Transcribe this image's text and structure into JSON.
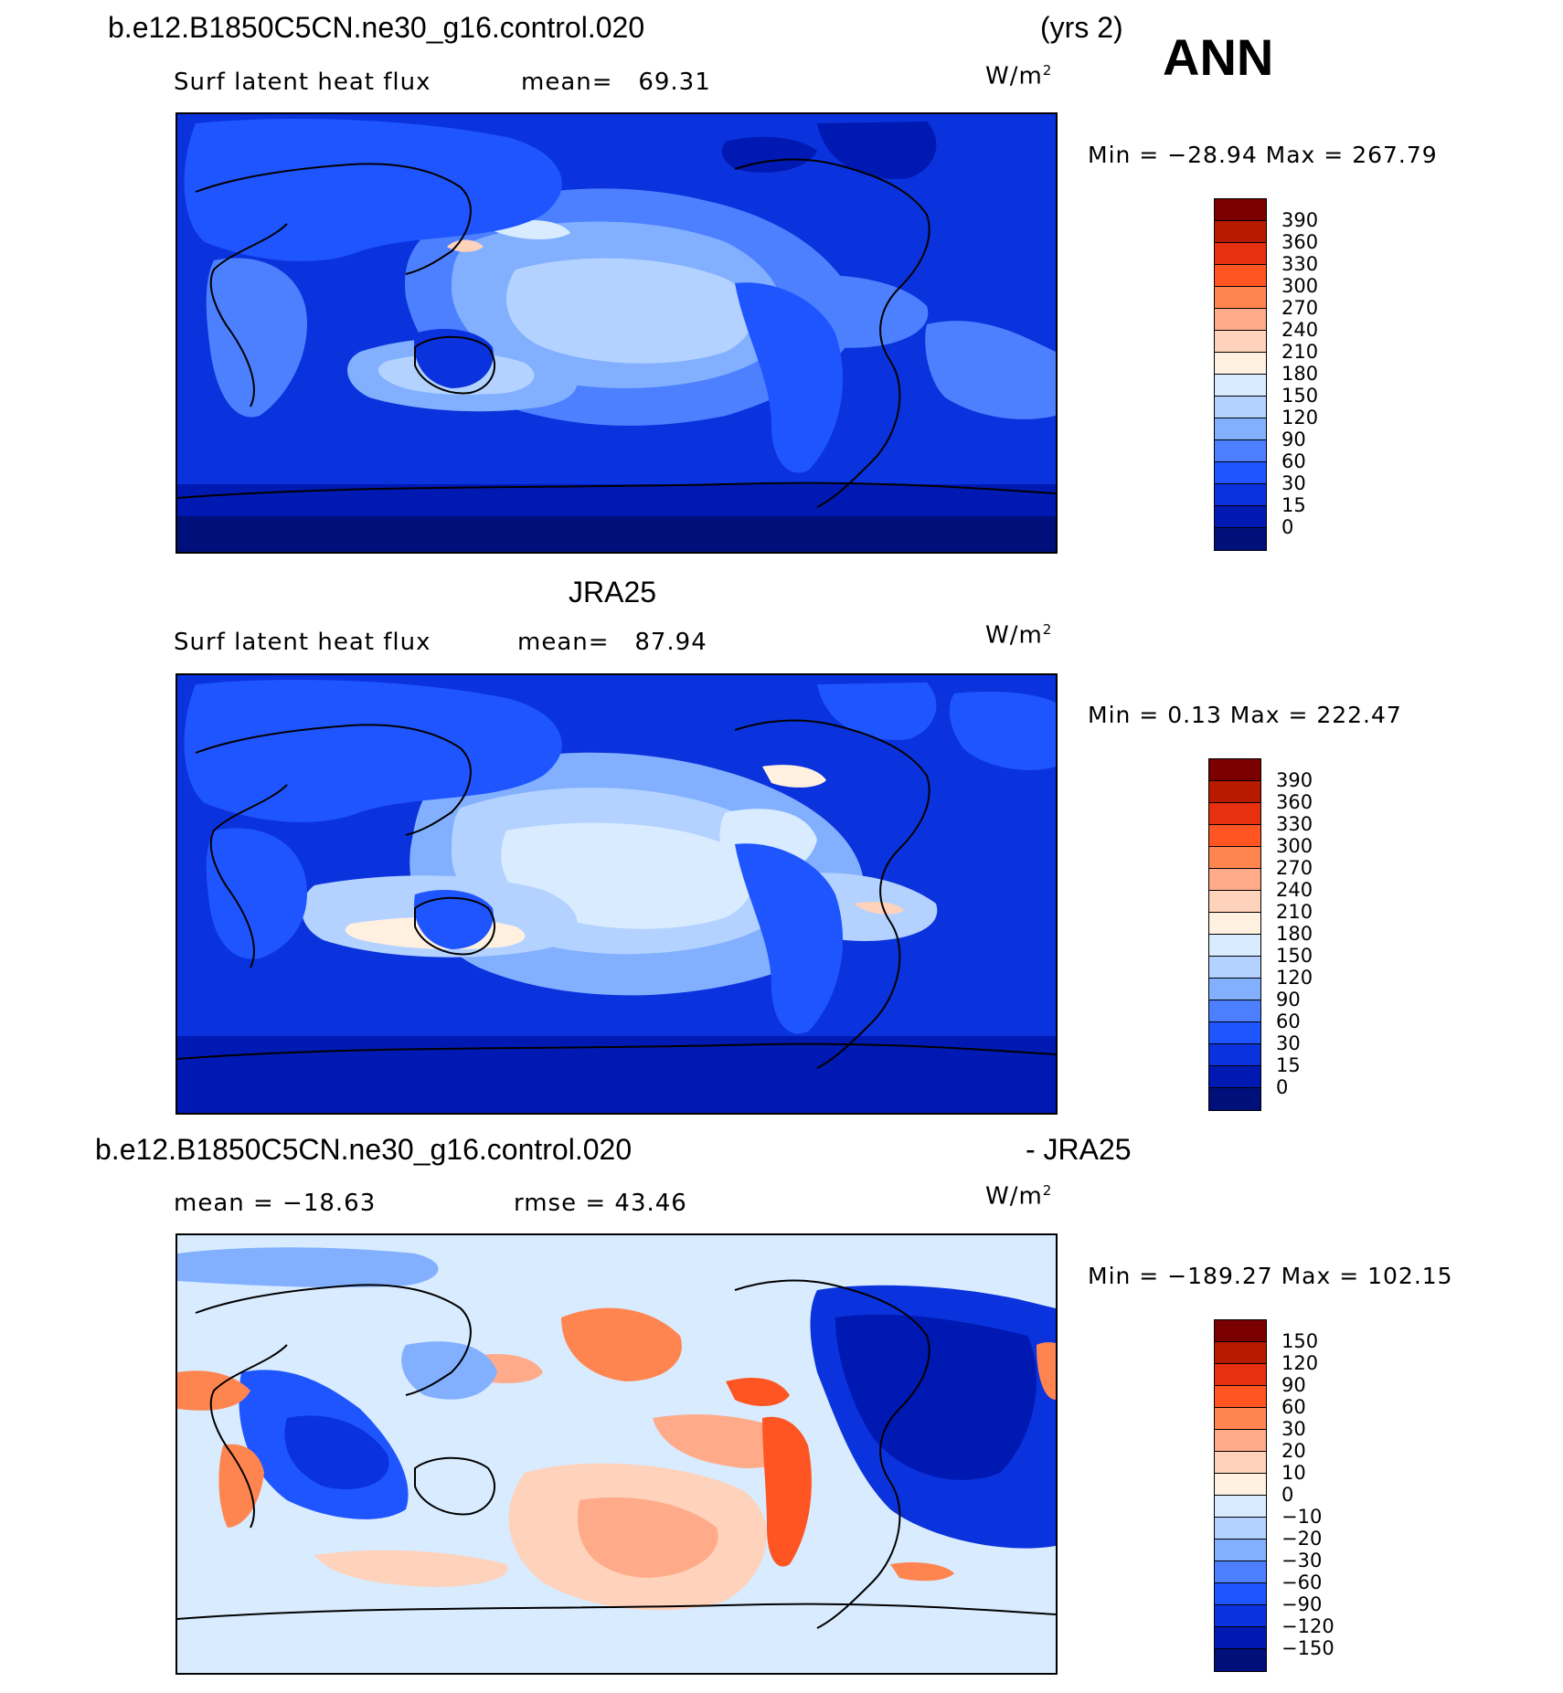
{
  "header": {
    "case_name": "b.e12.B1850C5CN.ne30_g16.control.020",
    "years": "(yrs 2)",
    "season": "ANN"
  },
  "panel1": {
    "variable": "Surf latent heat flux",
    "mean_label": "mean=",
    "mean_value": "69.31",
    "units": "W/m",
    "units_sup": "2",
    "min_max": "Min = −28.94 Max = 267.79",
    "colorbar_labels": [
      "390",
      "360",
      "330",
      "300",
      "270",
      "240",
      "210",
      "180",
      "150",
      "120",
      "90",
      "60",
      "30",
      "15",
      "0"
    ],
    "colorbar_colors": [
      "#7a0000",
      "#b81a00",
      "#e83010",
      "#ff5522",
      "#ff8550",
      "#ffaa88",
      "#ffd2bb",
      "#fff0e0",
      "#d8ebff",
      "#b3d2ff",
      "#82b0ff",
      "#4d80ff",
      "#1f55ff",
      "#0a33dd",
      "#0019b3",
      "#00107a"
    ]
  },
  "panel2": {
    "title": "JRA25",
    "variable": "Surf latent heat flux",
    "mean_label": "mean=",
    "mean_value": "87.94",
    "units": "W/m",
    "units_sup": "2",
    "min_max": "Min =    0.13 Max = 222.47",
    "colorbar_labels": [
      "390",
      "360",
      "330",
      "300",
      "270",
      "240",
      "210",
      "180",
      "150",
      "120",
      "90",
      "60",
      "30",
      "15",
      "0"
    ],
    "colorbar_colors": [
      "#7a0000",
      "#b81a00",
      "#e83010",
      "#ff5522",
      "#ff8550",
      "#ffaa88",
      "#ffd2bb",
      "#fff0e0",
      "#d8ebff",
      "#b3d2ff",
      "#82b0ff",
      "#4d80ff",
      "#1f55ff",
      "#0a33dd",
      "#0019b3",
      "#00107a"
    ]
  },
  "panel3": {
    "title_left": "b.e12.B1850C5CN.ne30_g16.control.020",
    "title_right": "- JRA25",
    "mean_text": "mean = −18.63",
    "rmse_text": "rmse =   43.46",
    "units": "W/m",
    "units_sup": "2",
    "min_max": "Min = −189.27 Max = 102.15",
    "colorbar_labels": [
      "150",
      "120",
      "90",
      "60",
      "30",
      "20",
      "10",
      "0",
      "−10",
      "−20",
      "−30",
      "−60",
      "−90",
      "−120",
      "−150"
    ],
    "colorbar_colors": [
      "#7a0000",
      "#b81a00",
      "#e83010",
      "#ff5522",
      "#ff8550",
      "#ffaa88",
      "#ffd2bb",
      "#fff0e0",
      "#d8ebff",
      "#b3d2ff",
      "#82b0ff",
      "#4d80ff",
      "#1f55ff",
      "#0a33dd",
      "#0019b3",
      "#00107a"
    ]
  }
}
